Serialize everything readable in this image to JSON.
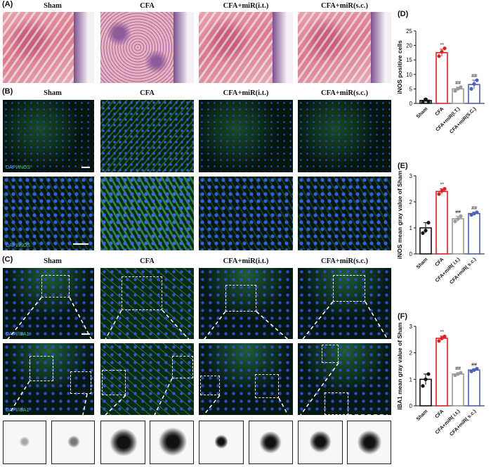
{
  "panels": {
    "A": "(A)",
    "B": "(B)",
    "C": "(C)",
    "D": "(D)",
    "E": "(E)",
    "F": "(F)"
  },
  "groups": [
    "Sham",
    "CFA",
    "CFA+miR(i.t.)",
    "CFA+miR(s.c.)"
  ],
  "stain_labels": {
    "inos_dapi": "DAPI",
    "inos_marker": "iNOS",
    "iba_dapi": "DAPI",
    "iba_marker": "IBA1",
    "sep": "/"
  },
  "colors": {
    "sham": "#111111",
    "cfa": "#e02020",
    "mir_it": "#9a9a9a",
    "mir_sc": "#4f5fb8"
  },
  "chart_data": [
    {
      "id": "D",
      "type": "bar",
      "ylabel": "iNOS positive cells",
      "ylim": [
        0,
        25
      ],
      "yticks": [
        0,
        5,
        10,
        15,
        20,
        25
      ],
      "categories": [
        "Sham",
        "CFA",
        "CFA+miR(I.T.)",
        "CFA+miR(S.C.)"
      ],
      "values": [
        1.0,
        17.5,
        5.0,
        6.5
      ],
      "errors": [
        0.6,
        1.2,
        0.6,
        1.5
      ],
      "points": [
        [
          0.5,
          1.4,
          0.7
        ],
        [
          16.3,
          17.8,
          19.0
        ],
        [
          4.3,
          5.1,
          5.6
        ],
        [
          5.0,
          6.7,
          8.0
        ]
      ],
      "annotations": [
        "",
        "**",
        "##",
        "##"
      ]
    },
    {
      "id": "E",
      "type": "bar",
      "ylabel": "iNOS mean gray value of Sham",
      "ylim": [
        0,
        3
      ],
      "yticks": [
        0,
        1,
        2,
        3
      ],
      "categories": [
        "Sham",
        "CFA",
        "CFA+miR( i.t.)",
        "CFA+miR( s.c.)"
      ],
      "values": [
        1.0,
        2.4,
        1.35,
        1.55
      ],
      "errors": [
        0.2,
        0.1,
        0.1,
        0.05
      ],
      "points": [
        [
          0.8,
          0.9,
          1.2
        ],
        [
          2.3,
          2.42,
          2.5
        ],
        [
          1.25,
          1.35,
          1.45
        ],
        [
          1.5,
          1.55,
          1.6
        ]
      ],
      "annotations": [
        "",
        "**",
        "##",
        "##"
      ]
    },
    {
      "id": "F",
      "type": "bar",
      "ylabel": "IBA1 mean gray value of Sham",
      "ylim": [
        0,
        3
      ],
      "yticks": [
        0,
        1,
        2,
        3
      ],
      "categories": [
        "Sham",
        "CFA",
        "CFA+miR( i.t.)",
        "CFA+miR( s.c.)"
      ],
      "values": [
        1.0,
        2.55,
        1.2,
        1.35
      ],
      "errors": [
        0.2,
        0.08,
        0.05,
        0.05
      ],
      "points": [
        [
          0.75,
          1.0,
          1.2
        ],
        [
          2.45,
          2.55,
          2.62
        ],
        [
          1.15,
          1.2,
          1.25
        ],
        [
          1.3,
          1.35,
          1.4
        ]
      ],
      "annotations": [
        "",
        "**",
        "##",
        "##"
      ]
    }
  ]
}
